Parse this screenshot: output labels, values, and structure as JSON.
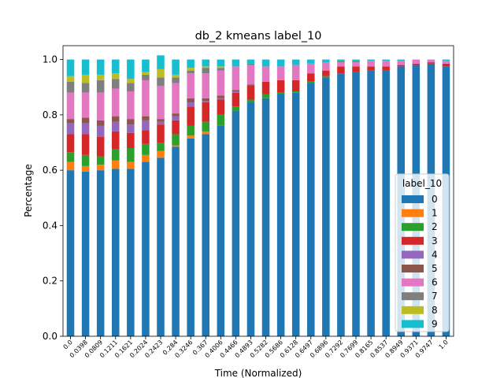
{
  "chart_data": {
    "type": "stacked_bar",
    "title": "db_2 kmeans label_10",
    "x_label": "Time (Normalized)",
    "y_label": "Percentage",
    "categories": [
      "0.0",
      "0.0398",
      "0.0809",
      "0.1211",
      "0.1621",
      "0.2024",
      "0.2423",
      "0.284",
      "0.3246",
      "0.367",
      "0.4006",
      "0.4466",
      "0.4893",
      "0.5282",
      "0.5686",
      "0.6128",
      "0.6497",
      "0.6896",
      "0.7292",
      "0.7699",
      "0.8165",
      "0.8537",
      "0.8949",
      "0.9371",
      "0.9747",
      "1.0"
    ],
    "series": [
      {
        "name": "0",
        "color": "#1f77b4",
        "values": [
          0.6,
          0.595,
          0.6,
          0.605,
          0.605,
          0.63,
          0.645,
          0.685,
          0.715,
          0.73,
          0.76,
          0.815,
          0.845,
          0.86,
          0.875,
          0.88,
          0.915,
          0.935,
          0.95,
          0.955,
          0.96,
          0.96,
          0.975,
          0.98,
          0.985,
          0.975
        ]
      },
      {
        "name": "1",
        "color": "#ff7f0e",
        "values": [
          0.03,
          0.02,
          0.02,
          0.03,
          0.025,
          0.025,
          0.025,
          0.005,
          0.01,
          0.01,
          0,
          0,
          0,
          0,
          0,
          0,
          0,
          0,
          0,
          0,
          0,
          0,
          0,
          0,
          0,
          0
        ]
      },
      {
        "name": "2",
        "color": "#2ca02c",
        "values": [
          0.035,
          0.04,
          0.03,
          0.04,
          0.05,
          0.04,
          0.03,
          0.04,
          0.035,
          0.035,
          0.04,
          0.015,
          0.01,
          0.015,
          0.005,
          0.005,
          0.005,
          0.005,
          0,
          0,
          0,
          0,
          0,
          0,
          0,
          0
        ]
      },
      {
        "name": "3",
        "color": "#d62728",
        "values": [
          0.065,
          0.075,
          0.07,
          0.065,
          0.055,
          0.05,
          0.065,
          0.05,
          0.07,
          0.07,
          0.055,
          0.05,
          0.05,
          0.045,
          0.045,
          0.04,
          0.03,
          0.02,
          0.025,
          0.02,
          0.015,
          0.015,
          0.005,
          0.005,
          0.005,
          0.01
        ]
      },
      {
        "name": "4",
        "color": "#9467bd",
        "values": [
          0.04,
          0.04,
          0.04,
          0.035,
          0.03,
          0.035,
          0.01,
          0.015,
          0.015,
          0.005,
          0.005,
          0.005,
          0,
          0,
          0,
          0,
          0,
          0,
          0,
          0,
          0,
          0,
          0,
          0,
          0,
          0
        ]
      },
      {
        "name": "5",
        "color": "#8c564b",
        "values": [
          0.015,
          0.02,
          0.02,
          0.02,
          0.02,
          0.015,
          0.01,
          0.01,
          0.015,
          0.01,
          0.01,
          0.005,
          0.005,
          0,
          0,
          0,
          0,
          0,
          0,
          0,
          0,
          0,
          0,
          0,
          0,
          0
        ]
      },
      {
        "name": "6",
        "color": "#e377c2",
        "values": [
          0.095,
          0.09,
          0.1,
          0.1,
          0.1,
          0.13,
          0.12,
          0.11,
          0.09,
          0.09,
          0.09,
          0.085,
          0.07,
          0.055,
          0.05,
          0.055,
          0.035,
          0.03,
          0.015,
          0.015,
          0.02,
          0.02,
          0.015,
          0.015,
          0.01,
          0.01
        ]
      },
      {
        "name": "7",
        "color": "#7f7f7f",
        "values": [
          0.04,
          0.035,
          0.045,
          0.035,
          0.03,
          0.02,
          0.03,
          0.02,
          0.01,
          0.02,
          0.01,
          0,
          0.005,
          0,
          0,
          0,
          0,
          0,
          0.005,
          0.005,
          0,
          0,
          0,
          0,
          0,
          0
        ]
      },
      {
        "name": "8",
        "color": "#bcbd22",
        "values": [
          0.02,
          0.03,
          0.02,
          0.02,
          0.015,
          0.01,
          0.03,
          0.01,
          0.01,
          0.005,
          0.005,
          0,
          0,
          0,
          0,
          0,
          0,
          0,
          0,
          0,
          0,
          0,
          0,
          0,
          0,
          0
        ]
      },
      {
        "name": "9",
        "color": "#17becf",
        "values": [
          0.06,
          0.055,
          0.055,
          0.05,
          0.07,
          0.045,
          0.05,
          0.055,
          0.03,
          0.025,
          0.025,
          0.025,
          0.015,
          0.025,
          0.025,
          0.02,
          0.015,
          0.01,
          0.005,
          0.005,
          0.005,
          0.005,
          0.005,
          0,
          0,
          0.005
        ]
      }
    ],
    "ylim": [
      0,
      1.05
    ],
    "yticks": [
      {
        "value": 0,
        "label": "0.0"
      },
      0.2,
      0.4,
      0.6,
      0.8,
      {
        "value": 1,
        "label": "1.0"
      }
    ],
    "legend_title": "label_10",
    "legend_position": "lower right"
  }
}
